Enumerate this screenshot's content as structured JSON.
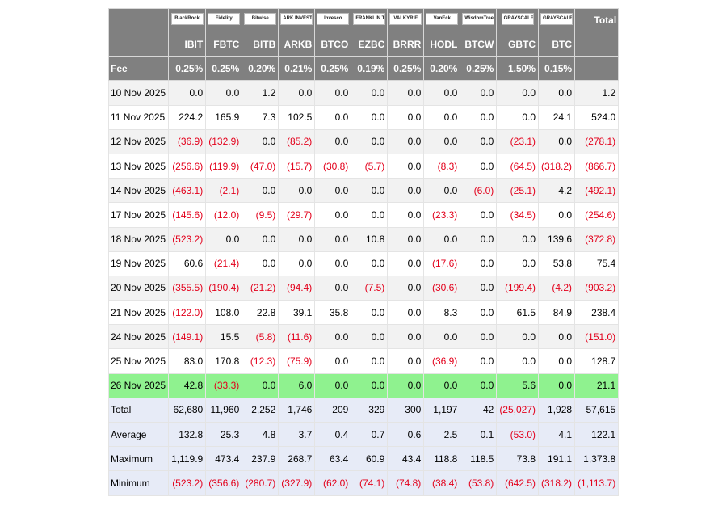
{
  "header": {
    "logos": [
      "BlackRock",
      "Fidelity",
      "Bitwise",
      "ARK INVEST",
      "Invesco",
      "FRANKLIN TEMPLETON",
      "VALKYRIE",
      "VanEck",
      "WisdomTree",
      "GRAYSCALE",
      "GRAYSCALE"
    ],
    "total": "Total",
    "tickers": [
      "IBIT",
      "FBTC",
      "BITB",
      "ARKB",
      "BTCO",
      "EZBC",
      "BRRR",
      "HODL",
      "BTCW",
      "GBTC",
      "BTC"
    ]
  },
  "fee": {
    "label": "Fee",
    "values": [
      "0.25%",
      "0.25%",
      "0.20%",
      "0.21%",
      "0.25%",
      "0.19%",
      "0.25%",
      "0.20%",
      "0.25%",
      "1.50%",
      "0.15%"
    ]
  },
  "rows": [
    {
      "date": "10 Nov 2025",
      "values": [
        "0.0",
        "0.0",
        "1.2",
        "0.0",
        "0.0",
        "0.0",
        "0.0",
        "0.0",
        "0.0",
        "0.0",
        "0.0",
        "1.2"
      ]
    },
    {
      "date": "11 Nov 2025",
      "values": [
        "224.2",
        "165.9",
        "7.3",
        "102.5",
        "0.0",
        "0.0",
        "0.0",
        "0.0",
        "0.0",
        "0.0",
        "24.1",
        "524.0"
      ]
    },
    {
      "date": "12 Nov 2025",
      "values": [
        "(36.9)",
        "(132.9)",
        "0.0",
        "(85.2)",
        "0.0",
        "0.0",
        "0.0",
        "0.0",
        "0.0",
        "(23.1)",
        "0.0",
        "(278.1)"
      ]
    },
    {
      "date": "13 Nov 2025",
      "values": [
        "(256.6)",
        "(119.9)",
        "(47.0)",
        "(15.7)",
        "(30.8)",
        "(5.7)",
        "0.0",
        "(8.3)",
        "0.0",
        "(64.5)",
        "(318.2)",
        "(866.7)"
      ]
    },
    {
      "date": "14 Nov 2025",
      "values": [
        "(463.1)",
        "(2.1)",
        "0.0",
        "0.0",
        "0.0",
        "0.0",
        "0.0",
        "0.0",
        "(6.0)",
        "(25.1)",
        "4.2",
        "(492.1)"
      ]
    },
    {
      "date": "17 Nov 2025",
      "values": [
        "(145.6)",
        "(12.0)",
        "(9.5)",
        "(29.7)",
        "0.0",
        "0.0",
        "0.0",
        "(23.3)",
        "0.0",
        "(34.5)",
        "0.0",
        "(254.6)"
      ]
    },
    {
      "date": "18 Nov 2025",
      "values": [
        "(523.2)",
        "0.0",
        "0.0",
        "0.0",
        "0.0",
        "10.8",
        "0.0",
        "0.0",
        "0.0",
        "0.0",
        "139.6",
        "(372.8)"
      ]
    },
    {
      "date": "19 Nov 2025",
      "values": [
        "60.6",
        "(21.4)",
        "0.0",
        "0.0",
        "0.0",
        "0.0",
        "0.0",
        "(17.6)",
        "0.0",
        "0.0",
        "53.8",
        "75.4"
      ]
    },
    {
      "date": "20 Nov 2025",
      "values": [
        "(355.5)",
        "(190.4)",
        "(21.2)",
        "(94.4)",
        "0.0",
        "(7.5)",
        "0.0",
        "(30.6)",
        "0.0",
        "(199.4)",
        "(4.2)",
        "(903.2)"
      ]
    },
    {
      "date": "21 Nov 2025",
      "values": [
        "(122.0)",
        "108.0",
        "22.8",
        "39.1",
        "35.8",
        "0.0",
        "0.0",
        "8.3",
        "0.0",
        "61.5",
        "84.9",
        "238.4"
      ]
    },
    {
      "date": "24 Nov 2025",
      "values": [
        "(149.1)",
        "15.5",
        "(5.8)",
        "(11.6)",
        "0.0",
        "0.0",
        "0.0",
        "0.0",
        "0.0",
        "0.0",
        "0.0",
        "(151.0)"
      ]
    },
    {
      "date": "25 Nov 2025",
      "values": [
        "83.0",
        "170.8",
        "(12.3)",
        "(75.9)",
        "0.0",
        "0.0",
        "0.0",
        "(36.9)",
        "0.0",
        "0.0",
        "0.0",
        "128.7"
      ]
    },
    {
      "date": "26 Nov 2025",
      "values": [
        "42.8",
        "(33.3)",
        "0.0",
        "6.0",
        "0.0",
        "0.0",
        "0.0",
        "0.0",
        "0.0",
        "5.6",
        "0.0",
        "21.1"
      ]
    }
  ],
  "summary": [
    {
      "label": "Total",
      "values": [
        "62,680",
        "11,960",
        "2,252",
        "1,746",
        "209",
        "329",
        "300",
        "1,197",
        "42",
        "(25,027)",
        "1,928",
        "57,615"
      ]
    },
    {
      "label": "Average",
      "values": [
        "132.8",
        "25.3",
        "4.8",
        "3.7",
        "0.4",
        "0.7",
        "0.6",
        "2.5",
        "0.1",
        "(53.0)",
        "4.1",
        "122.1"
      ]
    },
    {
      "label": "Maximum",
      "values": [
        "1,119.9",
        "473.4",
        "237.9",
        "268.7",
        "63.4",
        "60.9",
        "43.4",
        "118.8",
        "118.5",
        "73.8",
        "191.1",
        "1,373.8"
      ]
    },
    {
      "label": "Minimum",
      "values": [
        "(523.2)",
        "(356.6)",
        "(280.7)",
        "(327.9)",
        "(62.0)",
        "(74.1)",
        "(74.8)",
        "(38.4)",
        "(53.8)",
        "(642.5)",
        "(318.2)",
        "(1,113.7)"
      ]
    }
  ]
}
